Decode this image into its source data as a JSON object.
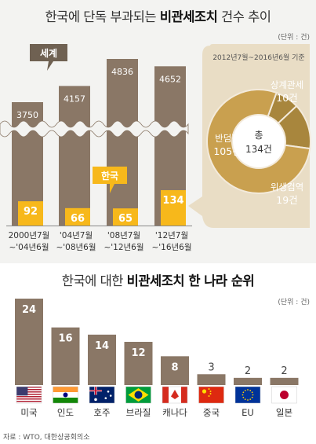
{
  "chart_data": [
    {
      "type": "bar",
      "title_plain": "한국에 단독 부과되는 ",
      "title_bold": "비관세조치",
      "title_tail": " 건수 추이",
      "unit": "(단위 : 건)",
      "categories": [
        "2000년7월\n~'04년6월",
        "'04년7월\n~'08년6월",
        "'08년7월\n~'12년6월",
        "'12년7월\n~'16년6월"
      ],
      "series": [
        {
          "name": "세계",
          "values": [
            3750,
            4157,
            4836,
            4652
          ]
        },
        {
          "name": "한국",
          "values": [
            92,
            66,
            65,
            134
          ]
        }
      ],
      "colors": {
        "world": "#8a7766",
        "korea": "#f7b81b",
        "pie_big": "#c9a04f",
        "pie_small": "#a8863d",
        "pie_bg": "#e9ddc5"
      }
    },
    {
      "type": "pie",
      "period": "2012년7월~2016년6월 기준",
      "total_label": "총",
      "total_value": "134건",
      "slices": [
        {
          "name": "반덤핑",
          "value": 105,
          "text": "105건"
        },
        {
          "name": "상계관세",
          "value": 10,
          "text": "10건"
        },
        {
          "name": "위생검역",
          "value": 19,
          "text": "19건"
        }
      ]
    },
    {
      "type": "bar",
      "title_plain1": "한국에 대한 ",
      "title_bold": "비관세조치 한 나라 순위",
      "unit": "(단위 : 건)",
      "categories": [
        "미국",
        "인도",
        "호주",
        "브라질",
        "캐나다",
        "중국",
        "EU",
        "일본"
      ],
      "values": [
        24,
        16,
        14,
        12,
        8,
        3,
        2,
        2
      ],
      "flags": [
        "us-flag-icon",
        "india-flag-icon",
        "australia-flag-icon",
        "brazil-flag-icon",
        "canada-flag-icon",
        "china-flag-icon",
        "eu-flag-icon",
        "japan-flag-icon"
      ],
      "colors": {
        "bar": "#8a7766",
        "value_text": "#ffffff"
      }
    }
  ],
  "labels": {
    "world_tag": "세계",
    "korea_tag": "한국"
  },
  "source": "자료 : WTO, 대한상공회의소"
}
